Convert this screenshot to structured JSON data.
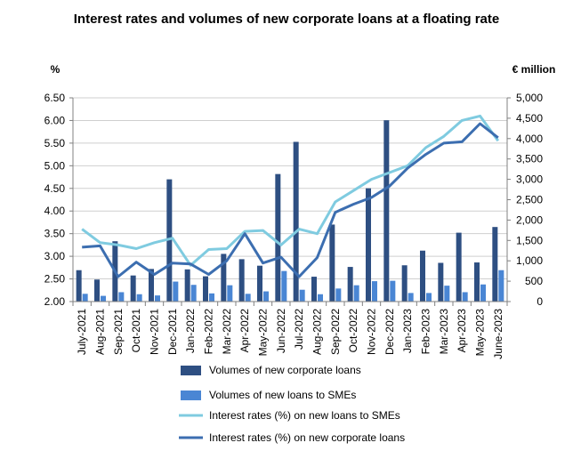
{
  "chart_data": {
    "type": "bar",
    "title": "Interest rates and volumes of new corporate loans at a floating rate",
    "y_left_label": "%",
    "y_right_label": "€ million",
    "y_left_lim": [
      2.0,
      6.5
    ],
    "y_left_ticks": [
      "2.00",
      "2.50",
      "3.00",
      "3.50",
      "4.00",
      "4.50",
      "5.00",
      "5.50",
      "6.00",
      "6.50"
    ],
    "y_right_lim": [
      0,
      5000
    ],
    "y_right_ticks": [
      "0",
      "500",
      "1,000",
      "1,500",
      "2,000",
      "2,500",
      "3,000",
      "3,500",
      "4,000",
      "4,500",
      "5,000"
    ],
    "grid": "horizontal",
    "legend_position": "bottom",
    "categories": [
      "July-2021",
      "Aug-2021",
      "Sep-2021",
      "Oct-2021",
      "Nov-2021",
      "Dec-2021",
      "Jan-2022",
      "Feb-2022",
      "Mar-2022",
      "Apr-2022",
      "May-2022",
      "Jun-2022",
      "Jul-2022",
      "Aug-2022",
      "Sep-2022",
      "Oct-2022",
      "Nov-2022",
      "Dec-2022",
      "Jan-2023",
      "Feb-2023",
      "Mar-2023",
      "Apr-2023",
      "May-2023",
      "June-2023"
    ],
    "series": [
      {
        "name": "Volumes of new corporate loans",
        "kind": "bar",
        "axis": "right",
        "color": "#2E4F82",
        "values": [
          770,
          540,
          1480,
          640,
          800,
          3000,
          790,
          620,
          1170,
          1040,
          880,
          3130,
          3920,
          610,
          1890,
          850,
          2780,
          4450,
          890,
          1250,
          950,
          1690,
          960,
          1830
        ]
      },
      {
        "name": "Volumes of new loans to SMEs",
        "kind": "bar",
        "axis": "right",
        "color": "#4A86D4",
        "values": [
          190,
          140,
          230,
          180,
          150,
          490,
          410,
          200,
          400,
          190,
          250,
          750,
          290,
          180,
          320,
          400,
          500,
          510,
          210,
          210,
          390,
          230,
          420,
          770
        ]
      },
      {
        "name": "Interest rates (%) on new loans to SMEs",
        "kind": "line",
        "axis": "left",
        "color": "#7FCBE0",
        "values": [
          3.6,
          3.3,
          3.25,
          3.17,
          3.3,
          3.4,
          2.8,
          3.15,
          3.17,
          3.55,
          3.57,
          3.25,
          3.6,
          3.5,
          4.2,
          4.45,
          4.7,
          4.85,
          5.0,
          5.4,
          5.65,
          6.0,
          6.1,
          5.55
        ]
      },
      {
        "name": "Interest rates (%) on new corporate loans",
        "kind": "line",
        "axis": "left",
        "color": "#3C6EB0",
        "values": [
          3.2,
          3.23,
          2.55,
          2.87,
          2.6,
          2.85,
          2.83,
          2.6,
          2.9,
          3.5,
          2.85,
          2.98,
          2.55,
          2.97,
          3.97,
          4.15,
          4.3,
          4.55,
          4.95,
          5.25,
          5.5,
          5.53,
          5.93,
          5.62
        ]
      }
    ]
  }
}
